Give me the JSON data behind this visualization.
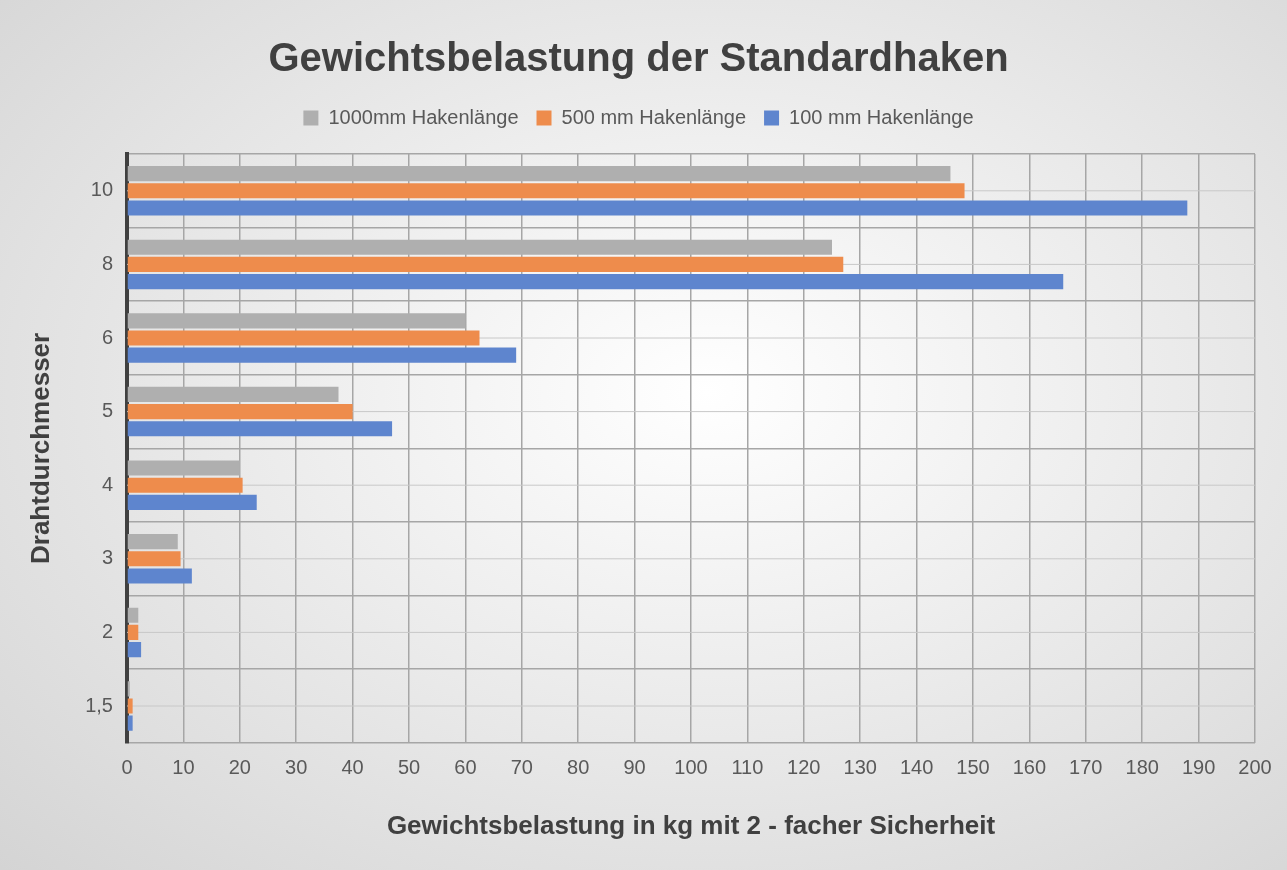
{
  "chart_data": {
    "type": "bar",
    "orientation": "horizontal",
    "title": "Gewichtsbelastung der Standardhaken",
    "xlabel": "Gewichtsbelastung in kg mit 2 - facher Sicherheit",
    "ylabel": "Drahtdurchmesser",
    "categories": [
      "10",
      "8",
      "6",
      "5",
      "4",
      "3",
      "2",
      "1,5"
    ],
    "series": [
      {
        "name": "1000mm Hakenlänge",
        "color": "#afafaf",
        "values": [
          146,
          125,
          60,
          37.5,
          20,
          9,
          2,
          0.5
        ]
      },
      {
        "name": "500 mm Hakenlänge",
        "color": "#ee8c4c",
        "values": [
          148.5,
          127,
          62.5,
          40,
          20.5,
          9.5,
          2,
          1
        ]
      },
      {
        "name": "100 mm Hakenlänge",
        "color": "#5e85ce",
        "values": [
          188,
          166,
          69,
          47,
          23,
          11.5,
          2.5,
          1
        ]
      }
    ],
    "xlim": [
      0,
      200
    ],
    "xticks": [
      0,
      10,
      20,
      30,
      40,
      50,
      60,
      70,
      80,
      90,
      100,
      110,
      120,
      130,
      140,
      150,
      160,
      170,
      180,
      190,
      200
    ],
    "grid": true,
    "legend": "top"
  }
}
